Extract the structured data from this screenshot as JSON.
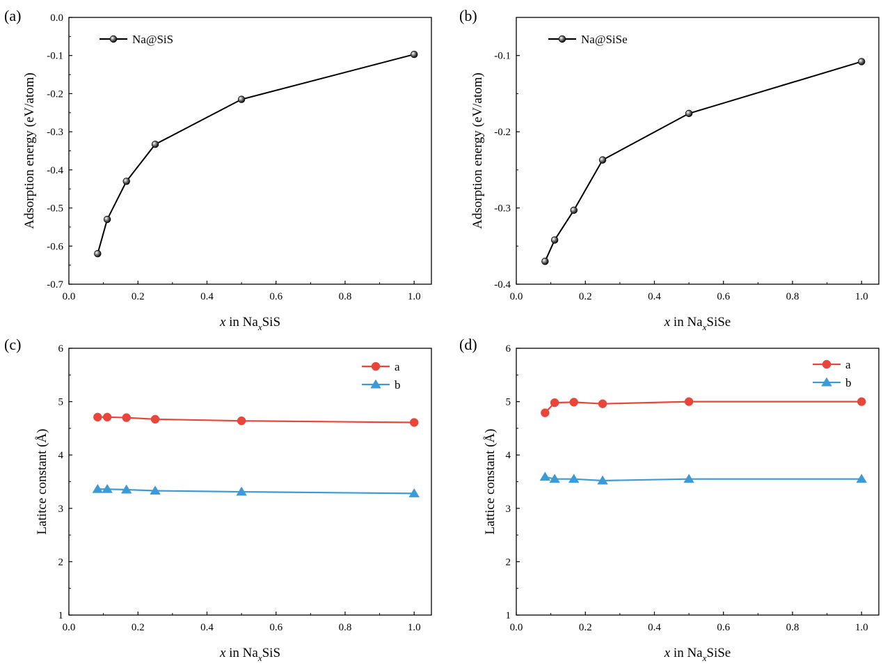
{
  "colors": {
    "black": "#000000",
    "red": "#e8463a",
    "blue": "#3c9bd6"
  },
  "chart_data": [
    {
      "panel_label": "(a)",
      "type": "line",
      "xlabel": {
        "italic": "x",
        "mid": " in Na",
        "sub": "x",
        "tail": "SiS"
      },
      "ylabel": "Adsorption energy (eV/atom)",
      "xlim": [
        0.0,
        1.05
      ],
      "ylim": [
        -0.7,
        0.0
      ],
      "xticks": [
        "0.0",
        "0.2",
        "0.4",
        "0.6",
        "0.8",
        "1.0"
      ],
      "yticks": [
        "0.0",
        "-0.1",
        "-0.2",
        "-0.3",
        "-0.4",
        "-0.5",
        "-0.6",
        "-0.7"
      ],
      "legend_position": "top-left",
      "series": [
        {
          "name": "Na@SiS",
          "color": "#000000",
          "marker": "sphere",
          "x": [
            0.0833,
            0.1111,
            0.1667,
            0.25,
            0.5,
            1.0
          ],
          "y": [
            -0.62,
            -0.53,
            -0.43,
            -0.333,
            -0.215,
            -0.097
          ]
        }
      ]
    },
    {
      "panel_label": "(b)",
      "type": "line",
      "xlabel": {
        "italic": "x",
        "mid": " in Na",
        "sub": "x",
        "tail": "SiSe"
      },
      "ylabel": "Adsorption energy (eV/atom)",
      "xlim": [
        0.0,
        1.05
      ],
      "ylim": [
        -0.4,
        -0.05
      ],
      "xticks": [
        "0.0",
        "0.2",
        "0.4",
        "0.6",
        "0.8",
        "1.0"
      ],
      "yticks": [
        "-0.1",
        "-0.2",
        "-0.3",
        "-0.4"
      ],
      "legend_position": "top-left",
      "series": [
        {
          "name": "Na@SiSe",
          "color": "#000000",
          "marker": "sphere",
          "x": [
            0.0833,
            0.1111,
            0.1667,
            0.25,
            0.5,
            1.0
          ],
          "y": [
            -0.37,
            -0.342,
            -0.303,
            -0.237,
            -0.176,
            -0.108
          ]
        }
      ]
    },
    {
      "panel_label": "(c)",
      "type": "line",
      "xlabel": {
        "italic": "x",
        "mid": " in Na",
        "sub": "x",
        "tail": "SiS"
      },
      "ylabel": "Latitce constant (Å)",
      "xlim": [
        0.0,
        1.05
      ],
      "ylim": [
        1,
        6
      ],
      "xticks": [
        "0.0",
        "0.2",
        "0.4",
        "0.6",
        "0.8",
        "1.0"
      ],
      "yticks": [
        "1",
        "2",
        "3",
        "4",
        "5",
        "6"
      ],
      "legend_position": "top-right",
      "series": [
        {
          "name": "a",
          "color": "#e8463a",
          "marker": "circle",
          "x": [
            0.0833,
            0.1111,
            0.1667,
            0.25,
            0.5,
            1.0
          ],
          "y": [
            4.71,
            4.71,
            4.7,
            4.67,
            4.64,
            4.61
          ]
        },
        {
          "name": "b",
          "color": "#3c9bd6",
          "marker": "triangle",
          "x": [
            0.0833,
            0.1111,
            0.1667,
            0.25,
            0.5,
            1.0
          ],
          "y": [
            3.36,
            3.36,
            3.35,
            3.33,
            3.31,
            3.28
          ]
        }
      ]
    },
    {
      "panel_label": "(d)",
      "type": "line",
      "xlabel": {
        "italic": "x",
        "mid": " in Na",
        "sub": "x",
        "tail": "SiSe"
      },
      "ylabel": "Lattice constant (Å)",
      "xlim": [
        0.0,
        1.05
      ],
      "ylim": [
        1,
        6
      ],
      "xticks": [
        "0.0",
        "0.2",
        "0.4",
        "0.6",
        "0.8",
        "1.0"
      ],
      "yticks": [
        "1",
        "2",
        "3",
        "4",
        "5",
        "6"
      ],
      "legend_position": "top-right",
      "series": [
        {
          "name": "a",
          "color": "#e8463a",
          "marker": "circle",
          "x": [
            0.0833,
            0.1111,
            0.1667,
            0.25,
            0.5,
            1.0
          ],
          "y": [
            4.79,
            4.98,
            4.99,
            4.96,
            5.0,
            5.0
          ]
        },
        {
          "name": "b",
          "color": "#3c9bd6",
          "marker": "triangle",
          "x": [
            0.0833,
            0.1111,
            0.1667,
            0.25,
            0.5,
            1.0
          ],
          "y": [
            3.59,
            3.55,
            3.55,
            3.52,
            3.55,
            3.55
          ]
        }
      ]
    }
  ]
}
